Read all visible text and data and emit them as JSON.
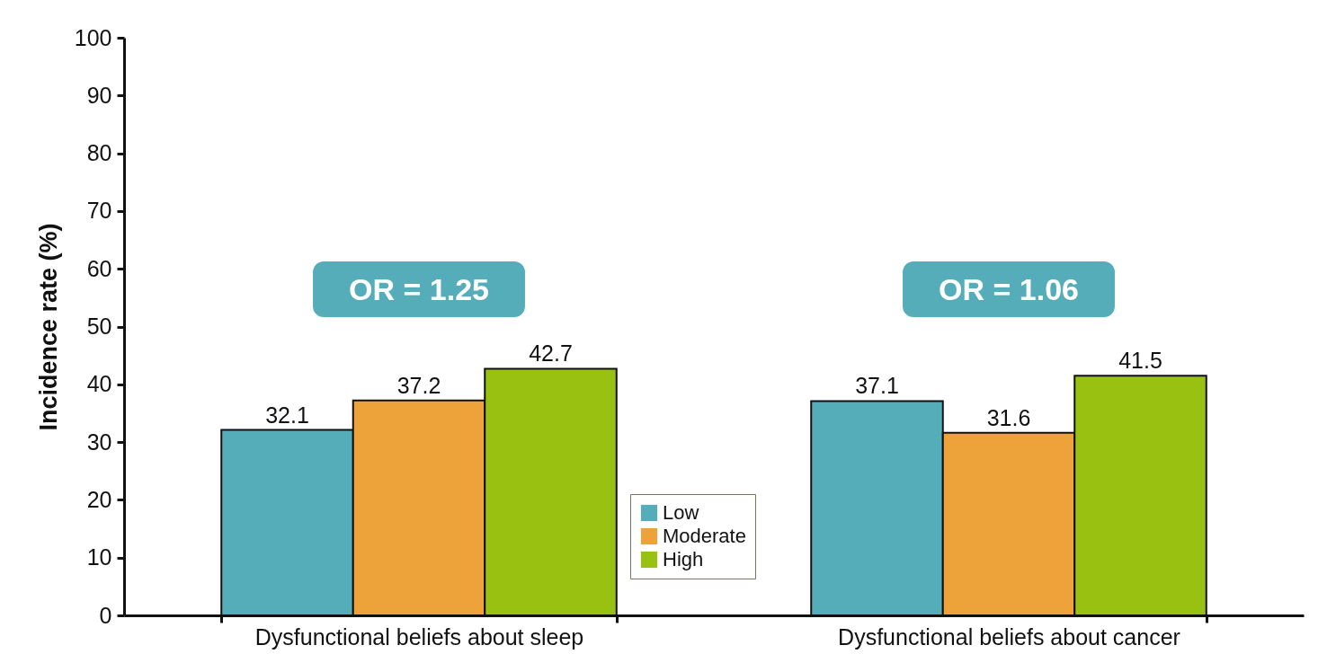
{
  "chart_data": {
    "type": "bar",
    "ylabel": "Incidence rate (%)",
    "categories": [
      "Dysfunctional beliefs about sleep",
      "Dysfunctional beliefs about cancer"
    ],
    "series": [
      {
        "name": "Low",
        "color": "#55adb9",
        "values": [
          32.1,
          37.1
        ]
      },
      {
        "name": "Moderate",
        "color": "#eda33a",
        "values": [
          37.2,
          31.6
        ]
      },
      {
        "name": "High",
        "color": "#98c111",
        "values": [
          42.7,
          41.5
        ]
      }
    ],
    "ylim": [
      0,
      100
    ],
    "yticks": [
      0,
      10,
      20,
      30,
      40,
      50,
      60,
      70,
      80,
      90,
      100
    ],
    "data_labels": true,
    "legend": "bottom",
    "grid": false,
    "annotations": [
      "OR = 1.25",
      "OR = 1.06"
    ]
  }
}
